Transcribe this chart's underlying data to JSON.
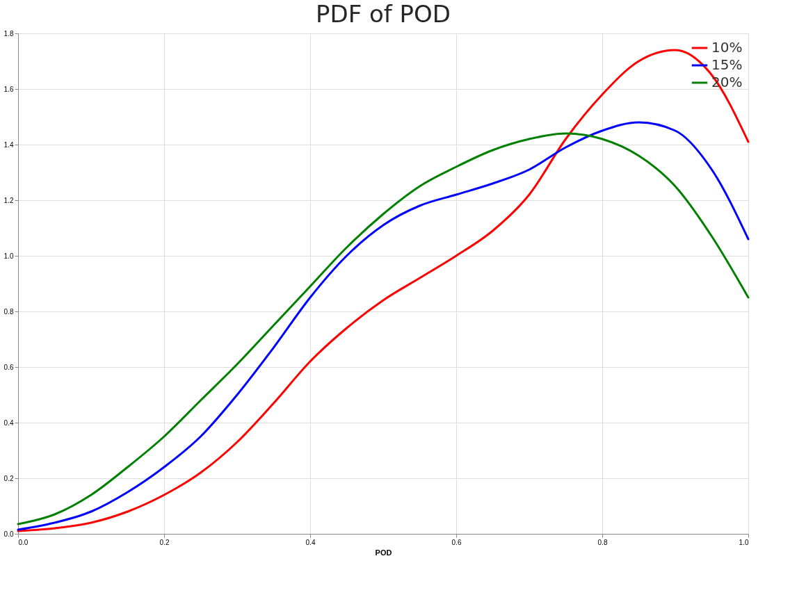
{
  "chart_data": {
    "type": "line",
    "title": "PDF of POD",
    "xlabel": "POD",
    "x": [
      0,
      0.05,
      0.1,
      0.15,
      0.2,
      0.25,
      0.3,
      0.35,
      0.4,
      0.45,
      0.5,
      0.55,
      0.6,
      0.65,
      0.7,
      0.75,
      0.8,
      0.85,
      0.9,
      0.95,
      1.0
    ],
    "series": [
      {
        "name": "10%",
        "color": "#ff0000",
        "values": [
          0.01,
          0.02,
          0.04,
          0.08,
          0.14,
          0.22,
          0.33,
          0.47,
          0.62,
          0.74,
          0.84,
          0.92,
          1.0,
          1.09,
          1.22,
          1.42,
          1.58,
          1.7,
          1.74,
          1.65,
          1.41
        ]
      },
      {
        "name": "15%",
        "color": "#0000ff",
        "values": [
          0.015,
          0.04,
          0.08,
          0.15,
          0.24,
          0.35,
          0.5,
          0.67,
          0.85,
          1.0,
          1.11,
          1.18,
          1.22,
          1.26,
          1.31,
          1.39,
          1.45,
          1.48,
          1.45,
          1.31,
          1.06
        ]
      },
      {
        "name": "20%",
        "color": "#008000",
        "values": [
          0.035,
          0.07,
          0.14,
          0.24,
          0.35,
          0.48,
          0.61,
          0.75,
          0.89,
          1.03,
          1.15,
          1.25,
          1.32,
          1.38,
          1.42,
          1.44,
          1.42,
          1.36,
          1.25,
          1.07,
          0.85
        ]
      }
    ],
    "xlim": [
      0,
      1.0
    ],
    "xticks": [
      {
        "value": 0,
        "label": "0.0"
      },
      0.2,
      0.4,
      0.6,
      0.8,
      {
        "value": 1,
        "label": "1.0"
      }
    ],
    "ylim": [
      0,
      1.8
    ],
    "yticks": [
      {
        "value": 0,
        "label": "0.0"
      },
      0.2,
      0.4,
      0.6,
      0.8,
      {
        "value": 1,
        "label": "1.0"
      },
      1.2,
      1.4,
      1.6,
      1.8
    ],
    "grid": true,
    "legend": "top right",
    "marker": "none",
    "line_style": "solid"
  }
}
